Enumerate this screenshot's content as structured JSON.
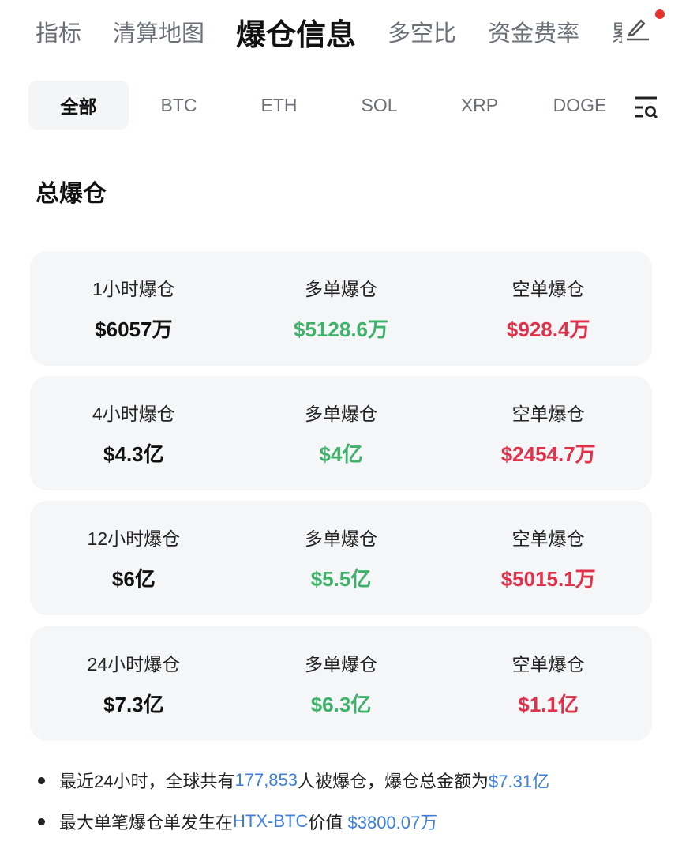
{
  "top_tabs": [
    {
      "label": "指标"
    },
    {
      "label": "清算地图"
    },
    {
      "label": "爆仓信息",
      "active": true
    },
    {
      "label": "多空比"
    },
    {
      "label": "资金费率"
    },
    {
      "label": "累"
    }
  ],
  "coin_tabs": [
    {
      "label": "全部",
      "active": true
    },
    {
      "label": "BTC"
    },
    {
      "label": "ETH"
    },
    {
      "label": "SOL"
    },
    {
      "label": "XRP"
    },
    {
      "label": "DOGE"
    }
  ],
  "section_title": "总爆仓",
  "cards": [
    {
      "period": "1小时爆仓",
      "total": "$6057万",
      "long_label": "多单爆仓",
      "long": "$5128.6万",
      "short_label": "空单爆仓",
      "short": "$928.4万"
    },
    {
      "period": "4小时爆仓",
      "total": "$4.3亿",
      "long_label": "多单爆仓",
      "long": "$4亿",
      "short_label": "空单爆仓",
      "short": "$2454.7万"
    },
    {
      "period": "12小时爆仓",
      "total": "$6亿",
      "long_label": "多单爆仓",
      "long": "$5.5亿",
      "short_label": "空单爆仓",
      "short": "$5015.1万"
    },
    {
      "period": "24小时爆仓",
      "total": "$7.3亿",
      "long_label": "多单爆仓",
      "long": "$6.3亿",
      "short_label": "空单爆仓",
      "short": "$1.1亿"
    }
  ],
  "notes": {
    "n1": {
      "a": "最近24小时，全球共有",
      "count": "177,853",
      "b": "人被爆仓，爆仓总金额为",
      "amount": "$7.31亿"
    },
    "n2": {
      "a": "最大单笔爆仓单发生在",
      "exchange": "HTX-BTC",
      "b": "价值 ",
      "amount": "$3800.07万"
    }
  },
  "colors": {
    "long": "#3fb26a",
    "short": "#e0314a",
    "link": "#3d7fdb",
    "notification": "#e8332f"
  },
  "icons": {
    "edit": "pencil-icon",
    "filter": "filter-search-icon"
  }
}
